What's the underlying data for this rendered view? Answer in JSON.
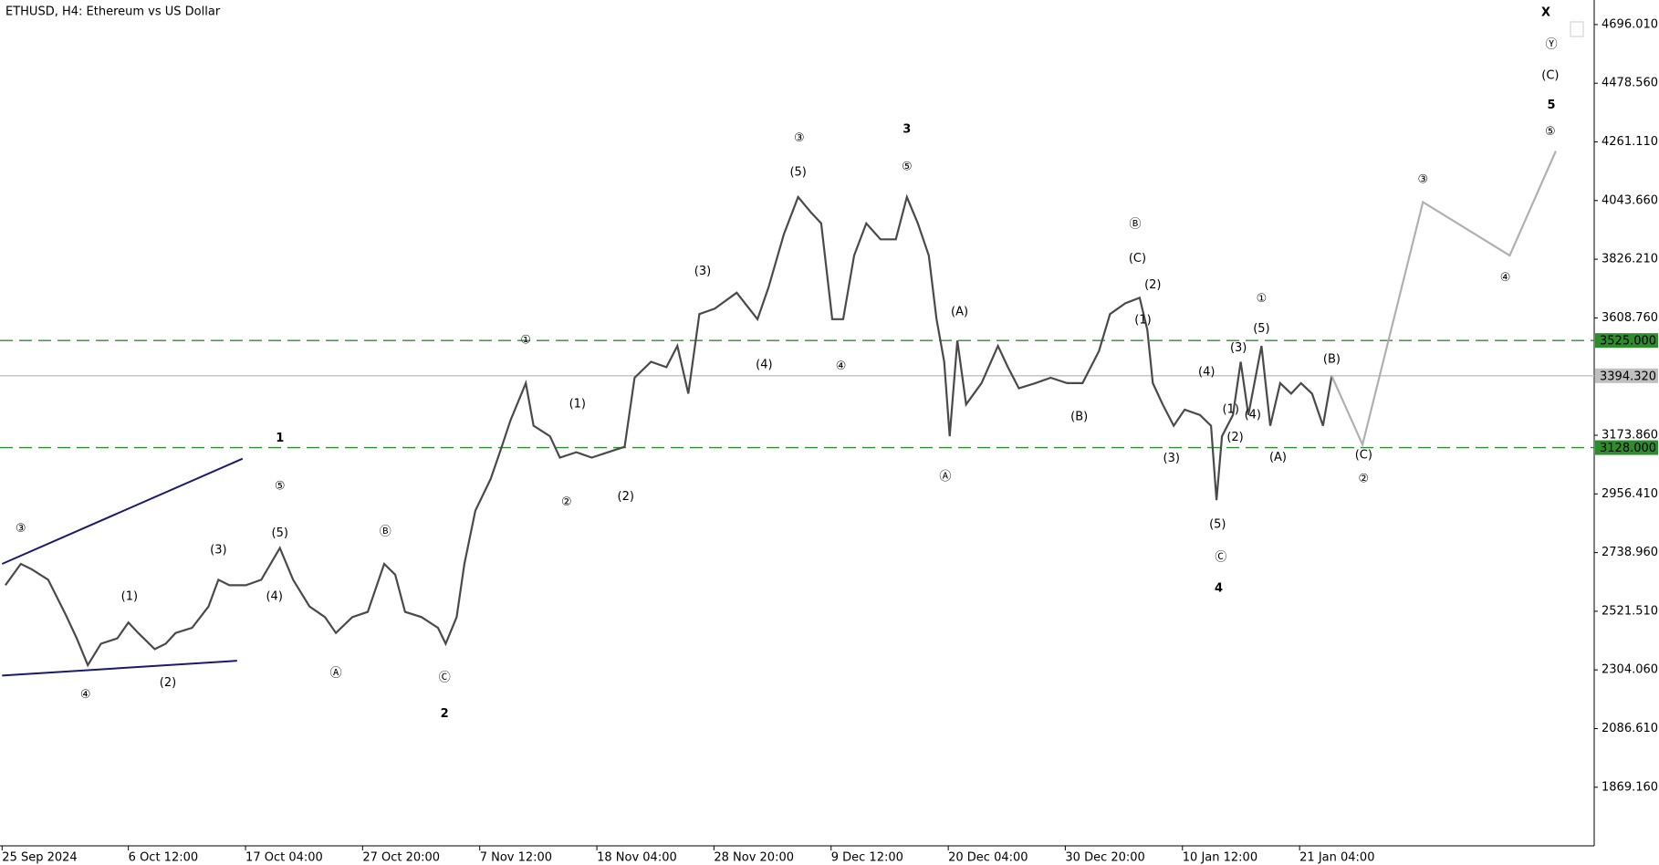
{
  "chart_data": {
    "type": "line",
    "title": "ETHUSD, H4:  Ethereum vs US Dollar",
    "xlim": [
      0,
      145
    ],
    "ylim": [
      1652,
      4787
    ],
    "xticks": [
      {
        "value": 0,
        "label": "25 Sep 2024"
      },
      {
        "value": 11.5,
        "label": "6 Oct 12:00"
      },
      {
        "value": 22.17,
        "label": "17 Oct 04:00"
      },
      {
        "value": 32.83,
        "label": "27 Oct 20:00"
      },
      {
        "value": 43.5,
        "label": "7 Nov 12:00"
      },
      {
        "value": 54.17,
        "label": "18 Nov 04:00"
      },
      {
        "value": 64.83,
        "label": "28 Nov 20:00"
      },
      {
        "value": 75.5,
        "label": "9 Dec 12:00"
      },
      {
        "value": 86.17,
        "label": "20 Dec 04:00"
      },
      {
        "value": 96.83,
        "label": "30 Dec 20:00"
      },
      {
        "value": 107.5,
        "label": "10 Jan 12:00"
      },
      {
        "value": 118.17,
        "label": "21 Jan 04:00"
      }
    ],
    "yticks": [
      {
        "value": 4696.01,
        "label": "4696.010"
      },
      {
        "value": 4478.56,
        "label": "4478.560"
      },
      {
        "value": 4261.11,
        "label": "4261.110"
      },
      {
        "value": 4043.66,
        "label": "4043.660"
      },
      {
        "value": 3826.21,
        "label": "3826.210"
      },
      {
        "value": 3608.76,
        "label": "3608.760"
      },
      {
        "value": 3173.86,
        "label": "3173.860"
      },
      {
        "value": 2956.41,
        "label": "2956.410"
      },
      {
        "value": 2738.96,
        "label": "2738.960"
      },
      {
        "value": 2521.51,
        "label": "2521.510"
      },
      {
        "value": 2304.06,
        "label": "2304.060"
      },
      {
        "value": 2086.61,
        "label": "2086.610"
      },
      {
        "value": 1869.16,
        "label": "1869.160"
      }
    ],
    "series": [
      {
        "color": "#4a4a4a",
        "x": [
          0.3,
          1.7,
          2.7,
          4.2,
          5.8,
          6.8,
          7.8,
          9.0,
          10.5,
          11.5,
          12.4,
          13.9,
          14.9,
          15.8,
          17.3,
          18.8,
          19.7,
          20.7,
          22.2,
          23.6,
          25.3,
          26.5,
          28.0,
          29.4,
          30.4,
          31.9,
          33.3,
          34.8,
          35.8,
          36.7,
          38.2,
          39.7,
          40.4,
          41.4,
          42.1,
          43.1,
          44.5,
          45.5,
          46.3,
          47.7,
          48.4,
          49.9,
          50.8,
          52.3,
          53.7,
          55.2,
          56.7,
          57.6,
          59.1,
          60.5,
          61.5,
          62.5,
          63.5,
          64.9,
          66.9,
          68.8,
          69.8,
          71.2,
          72.5,
          73.7,
          74.6,
          75.6,
          76.6,
          77.6,
          78.7,
          80.0,
          81.4,
          82.4,
          83.4,
          84.4,
          85.1,
          85.8,
          86.3,
          87.0,
          87.8,
          89.2,
          90.7,
          91.6,
          92.6,
          94.1,
          95.5,
          97.0,
          98.4,
          99.9,
          100.9,
          102.3,
          103.6,
          104.3,
          104.8,
          105.7,
          106.7,
          107.7,
          109.1,
          110.1,
          110.6,
          111.1,
          112.1,
          112.8,
          113.5,
          114.7,
          115.5,
          116.4,
          117.4,
          118.3,
          119.3,
          120.3,
          121.1
        ],
        "values": [
          2618,
          2697,
          2677,
          2638,
          2508,
          2421,
          2322,
          2401,
          2421,
          2480,
          2441,
          2381,
          2401,
          2441,
          2460,
          2539,
          2638,
          2618,
          2618,
          2638,
          2756,
          2638,
          2539,
          2500,
          2441,
          2500,
          2519,
          2697,
          2657,
          2519,
          2500,
          2460,
          2401,
          2500,
          2697,
          2894,
          3012,
          3131,
          3229,
          3367,
          3209,
          3170,
          3091,
          3111,
          3091,
          3111,
          3131,
          3387,
          3446,
          3426,
          3505,
          3328,
          3623,
          3643,
          3702,
          3604,
          3722,
          3919,
          4057,
          3998,
          3959,
          3604,
          3604,
          3840,
          3959,
          3900,
          3900,
          4057,
          3959,
          3840,
          3604,
          3446,
          3170,
          3525,
          3288,
          3367,
          3505,
          3426,
          3348,
          3367,
          3387,
          3367,
          3367,
          3486,
          3623,
          3663,
          3683,
          3564,
          3367,
          3288,
          3209,
          3269,
          3249,
          3209,
          2933,
          3170,
          3249,
          3446,
          3249,
          3505,
          3209,
          3367,
          3328,
          3367,
          3328,
          3209,
          3394
        ]
      },
      {
        "color": "#b0b0b0",
        "x": [
          121.1,
          123.9,
          129.4,
          137.3,
          141.5
        ],
        "values": [
          3394,
          3139,
          4038,
          3840,
          4227
        ]
      }
    ],
    "trendlines": [
      {
        "color": "#1a1a6e",
        "x": [
          0,
          21.9
        ],
        "values": [
          2697,
          3087
        ]
      },
      {
        "color": "#1a1a6e",
        "x": [
          0,
          21.4
        ],
        "values": [
          2283,
          2338
        ]
      }
    ],
    "hlines": [
      {
        "value": 3525,
        "label": "3525.000",
        "color": "#2e8b2e",
        "dashed": true
      },
      {
        "value": 3394.32,
        "label": "3394.320",
        "color": "#c0c0c0",
        "dashed": false
      },
      {
        "value": 3128,
        "label": "3128.000",
        "color": "#2e8b2e",
        "dashed": true
      }
    ],
    "annotation_styles": {
      "circle": {
        "color": "#1f7a1f",
        "size": 26
      },
      "paren": {
        "color": "#1a1a7e",
        "size": 22
      },
      "wave": {
        "color": "#7b0a0a",
        "size": 29
      }
    },
    "annotations": [
      {
        "text": "③",
        "x": 1.7,
        "y": 2827,
        "style": "circle"
      },
      {
        "text": "④",
        "x": 7.6,
        "y": 2212,
        "style": "circle"
      },
      {
        "text": "⑤",
        "x": 25.3,
        "y": 2985,
        "style": "circle"
      },
      {
        "text": "Ⓑ",
        "x": 34.9,
        "y": 2815,
        "style": "circle"
      },
      {
        "text": "Ⓐ",
        "x": 30.4,
        "y": 2291,
        "style": "circle"
      },
      {
        "text": "Ⓒ",
        "x": 40.3,
        "y": 2275,
        "style": "circle"
      },
      {
        "text": "①",
        "x": 47.7,
        "y": 3525,
        "style": "circle"
      },
      {
        "text": "②",
        "x": 51.4,
        "y": 2926,
        "style": "circle"
      },
      {
        "text": "③",
        "x": 72.6,
        "y": 4274,
        "style": "circle"
      },
      {
        "text": "④",
        "x": 76.4,
        "y": 3430,
        "style": "circle"
      },
      {
        "text": "⑤",
        "x": 82.4,
        "y": 4168,
        "style": "circle"
      },
      {
        "text": "Ⓐ",
        "x": 85.9,
        "y": 3020,
        "style": "circle"
      },
      {
        "text": "Ⓑ",
        "x": 103.2,
        "y": 3955,
        "style": "circle"
      },
      {
        "text": "Ⓒ",
        "x": 111.0,
        "y": 2721,
        "style": "circle"
      },
      {
        "text": "①",
        "x": 114.7,
        "y": 3679,
        "style": "circle"
      },
      {
        "text": "②",
        "x": 124.0,
        "y": 3012,
        "style": "circle"
      },
      {
        "text": "③",
        "x": 129.4,
        "y": 4120,
        "style": "circle"
      },
      {
        "text": "④",
        "x": 136.9,
        "y": 3758,
        "style": "circle"
      },
      {
        "text": "⑤",
        "x": 141.0,
        "y": 4298,
        "style": "circle"
      },
      {
        "text": "Ⓨ",
        "x": 141.1,
        "y": 4621,
        "style": "circle"
      },
      {
        "text": "(1)",
        "x": 11.6,
        "y": 2575,
        "style": "paren"
      },
      {
        "text": "(2)",
        "x": 15.1,
        "y": 2255,
        "style": "paren"
      },
      {
        "text": "(3)",
        "x": 19.7,
        "y": 2748,
        "style": "paren"
      },
      {
        "text": "(4)",
        "x": 24.8,
        "y": 2575,
        "style": "paren"
      },
      {
        "text": "(5)",
        "x": 25.3,
        "y": 2811,
        "style": "paren"
      },
      {
        "text": "(1)",
        "x": 52.4,
        "y": 3288,
        "style": "paren"
      },
      {
        "text": "(2)",
        "x": 56.8,
        "y": 2945,
        "style": "paren"
      },
      {
        "text": "(3)",
        "x": 63.8,
        "y": 3781,
        "style": "paren"
      },
      {
        "text": "(4)",
        "x": 69.4,
        "y": 3434,
        "style": "paren"
      },
      {
        "text": "(5)",
        "x": 72.5,
        "y": 4148,
        "style": "paren"
      },
      {
        "text": "(A)",
        "x": 87.2,
        "y": 3631,
        "style": "paren"
      },
      {
        "text": "(B)",
        "x": 98.1,
        "y": 3241,
        "style": "paren"
      },
      {
        "text": "(C)",
        "x": 103.4,
        "y": 3829,
        "style": "paren"
      },
      {
        "text": "(2)",
        "x": 104.8,
        "y": 3730,
        "style": "paren"
      },
      {
        "text": "(1)",
        "x": 103.9,
        "y": 3600,
        "style": "paren"
      },
      {
        "text": "(4)",
        "x": 109.7,
        "y": 3407,
        "style": "paren"
      },
      {
        "text": "(3)",
        "x": 106.5,
        "y": 3087,
        "style": "paren"
      },
      {
        "text": "(5)",
        "x": 110.7,
        "y": 2843,
        "style": "paren"
      },
      {
        "text": "(3)",
        "x": 112.6,
        "y": 3497,
        "style": "paren"
      },
      {
        "text": "(5)",
        "x": 114.7,
        "y": 3568,
        "style": "paren"
      },
      {
        "text": "(1)",
        "x": 111.9,
        "y": 3269,
        "style": "paren"
      },
      {
        "text": "(4)",
        "x": 113.9,
        "y": 3249,
        "style": "paren"
      },
      {
        "text": "(2)",
        "x": 112.3,
        "y": 3166,
        "style": "paren"
      },
      {
        "text": "(A)",
        "x": 116.2,
        "y": 3091,
        "style": "paren"
      },
      {
        "text": "(B)",
        "x": 121.1,
        "y": 3454,
        "style": "paren"
      },
      {
        "text": "(C)",
        "x": 124.0,
        "y": 3099,
        "style": "paren"
      },
      {
        "text": "(C)",
        "x": 141.0,
        "y": 4507,
        "style": "paren"
      },
      {
        "text": "1",
        "x": 25.3,
        "y": 3162,
        "style": "wave"
      },
      {
        "text": "2",
        "x": 40.3,
        "y": 2141,
        "style": "wave"
      },
      {
        "text": "3",
        "x": 82.4,
        "y": 4306,
        "style": "wave"
      },
      {
        "text": "4",
        "x": 110.8,
        "y": 2606,
        "style": "wave"
      },
      {
        "text": "5",
        "x": 141.1,
        "y": 4396,
        "style": "wave"
      },
      {
        "text": "X",
        "x": 140.6,
        "y": 4739,
        "style": "wave"
      }
    ]
  }
}
